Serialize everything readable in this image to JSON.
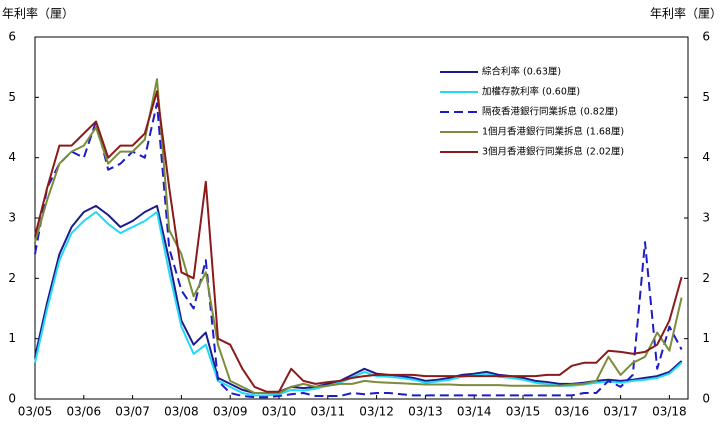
{
  "chart_data": {
    "type": "line",
    "y_label": "年利率（厘）",
    "y2_label": "年利率（厘）",
    "categories": [
      "03/05",
      null,
      null,
      null,
      "03/06",
      null,
      null,
      null,
      "03/07",
      null,
      null,
      null,
      "03/08",
      null,
      null,
      null,
      "03/09",
      null,
      null,
      null,
      "03/10",
      null,
      null,
      null,
      "03/11",
      null,
      null,
      null,
      "03/12",
      null,
      null,
      null,
      "03/13",
      null,
      null,
      null,
      "03/14",
      null,
      null,
      null,
      "03/15",
      null,
      null,
      null,
      "03/16",
      null,
      null,
      null,
      "03/17",
      null,
      null,
      null,
      "03/18",
      null
    ],
    "ylim": [
      0,
      6
    ],
    "yticks": [
      0,
      1,
      2,
      3,
      4,
      5,
      6
    ],
    "y2lim": [
      0,
      6
    ],
    "y2ticks": [
      0,
      1,
      2,
      3,
      4,
      5,
      6
    ],
    "series": [
      {
        "name": "綜合利率 (0.63厘)",
        "color": "#1c1c8c",
        "dashed": false,
        "values": [
          0.7,
          1.6,
          2.4,
          2.85,
          3.1,
          3.2,
          3.05,
          2.85,
          2.95,
          3.1,
          3.2,
          2.3,
          1.3,
          0.9,
          1.1,
          0.35,
          0.25,
          0.15,
          0.1,
          0.1,
          0.12,
          0.2,
          0.18,
          0.2,
          0.25,
          0.3,
          0.4,
          0.5,
          0.42,
          0.4,
          0.38,
          0.35,
          0.3,
          0.32,
          0.35,
          0.4,
          0.42,
          0.45,
          0.4,
          0.38,
          0.35,
          0.3,
          0.28,
          0.25,
          0.25,
          0.27,
          0.3,
          0.32,
          0.3,
          0.32,
          0.35,
          0.38,
          0.45,
          0.63
        ]
      },
      {
        "name": "加權存款利率 (0.60厘)",
        "color": "#22d8f5",
        "dashed": false,
        "values": [
          0.6,
          1.5,
          2.3,
          2.75,
          2.95,
          3.1,
          2.9,
          2.75,
          2.85,
          2.95,
          3.1,
          2.1,
          1.2,
          0.75,
          0.9,
          0.3,
          0.2,
          0.1,
          0.06,
          0.06,
          0.08,
          0.15,
          0.14,
          0.17,
          0.22,
          0.27,
          0.36,
          0.45,
          0.38,
          0.37,
          0.35,
          0.32,
          0.27,
          0.29,
          0.32,
          0.37,
          0.39,
          0.42,
          0.37,
          0.35,
          0.32,
          0.27,
          0.25,
          0.22,
          0.22,
          0.24,
          0.27,
          0.29,
          0.27,
          0.3,
          0.32,
          0.35,
          0.42,
          0.6
        ]
      },
      {
        "name": "隔夜香港銀行同業拆息 (0.82厘)",
        "color": "#1c1cc8",
        "dashed": true,
        "values": [
          2.4,
          3.5,
          3.9,
          4.1,
          4.0,
          4.6,
          3.8,
          3.9,
          4.1,
          4.0,
          4.9,
          2.5,
          1.8,
          1.5,
          2.3,
          0.3,
          0.1,
          0.05,
          0.03,
          0.03,
          0.05,
          0.08,
          0.1,
          0.05,
          0.05,
          0.05,
          0.1,
          0.08,
          0.1,
          0.1,
          0.08,
          0.06,
          0.06,
          0.06,
          0.06,
          0.06,
          0.06,
          0.06,
          0.06,
          0.06,
          0.06,
          0.06,
          0.06,
          0.06,
          0.06,
          0.1,
          0.1,
          0.3,
          0.2,
          0.4,
          2.6,
          0.5,
          1.2,
          0.82
        ]
      },
      {
        "name": "1個月香港銀行同業拆息 (1.68厘)",
        "color": "#7b8c3a",
        "dashed": false,
        "values": [
          2.6,
          3.3,
          3.9,
          4.1,
          4.2,
          4.5,
          3.9,
          4.1,
          4.1,
          4.3,
          5.3,
          2.8,
          2.4,
          1.7,
          2.1,
          0.9,
          0.3,
          0.2,
          0.1,
          0.1,
          0.1,
          0.2,
          0.25,
          0.2,
          0.22,
          0.25,
          0.25,
          0.3,
          0.28,
          0.27,
          0.26,
          0.25,
          0.24,
          0.24,
          0.24,
          0.23,
          0.23,
          0.23,
          0.23,
          0.22,
          0.22,
          0.22,
          0.22,
          0.22,
          0.24,
          0.25,
          0.3,
          0.7,
          0.4,
          0.6,
          0.7,
          1.1,
          0.8,
          1.68
        ]
      },
      {
        "name": "3個月香港銀行同業拆息 (2.02厘)",
        "color": "#8b1a1a",
        "dashed": false,
        "values": [
          2.7,
          3.5,
          4.2,
          4.2,
          4.4,
          4.6,
          4.0,
          4.2,
          4.2,
          4.4,
          5.1,
          3.5,
          2.1,
          2.0,
          3.6,
          1.0,
          0.9,
          0.5,
          0.2,
          0.12,
          0.12,
          0.5,
          0.3,
          0.25,
          0.28,
          0.3,
          0.35,
          0.38,
          0.4,
          0.4,
          0.4,
          0.4,
          0.38,
          0.38,
          0.38,
          0.38,
          0.38,
          0.38,
          0.38,
          0.38,
          0.38,
          0.38,
          0.4,
          0.4,
          0.55,
          0.6,
          0.6,
          0.8,
          0.78,
          0.75,
          0.78,
          0.9,
          1.3,
          2.02
        ]
      }
    ]
  }
}
